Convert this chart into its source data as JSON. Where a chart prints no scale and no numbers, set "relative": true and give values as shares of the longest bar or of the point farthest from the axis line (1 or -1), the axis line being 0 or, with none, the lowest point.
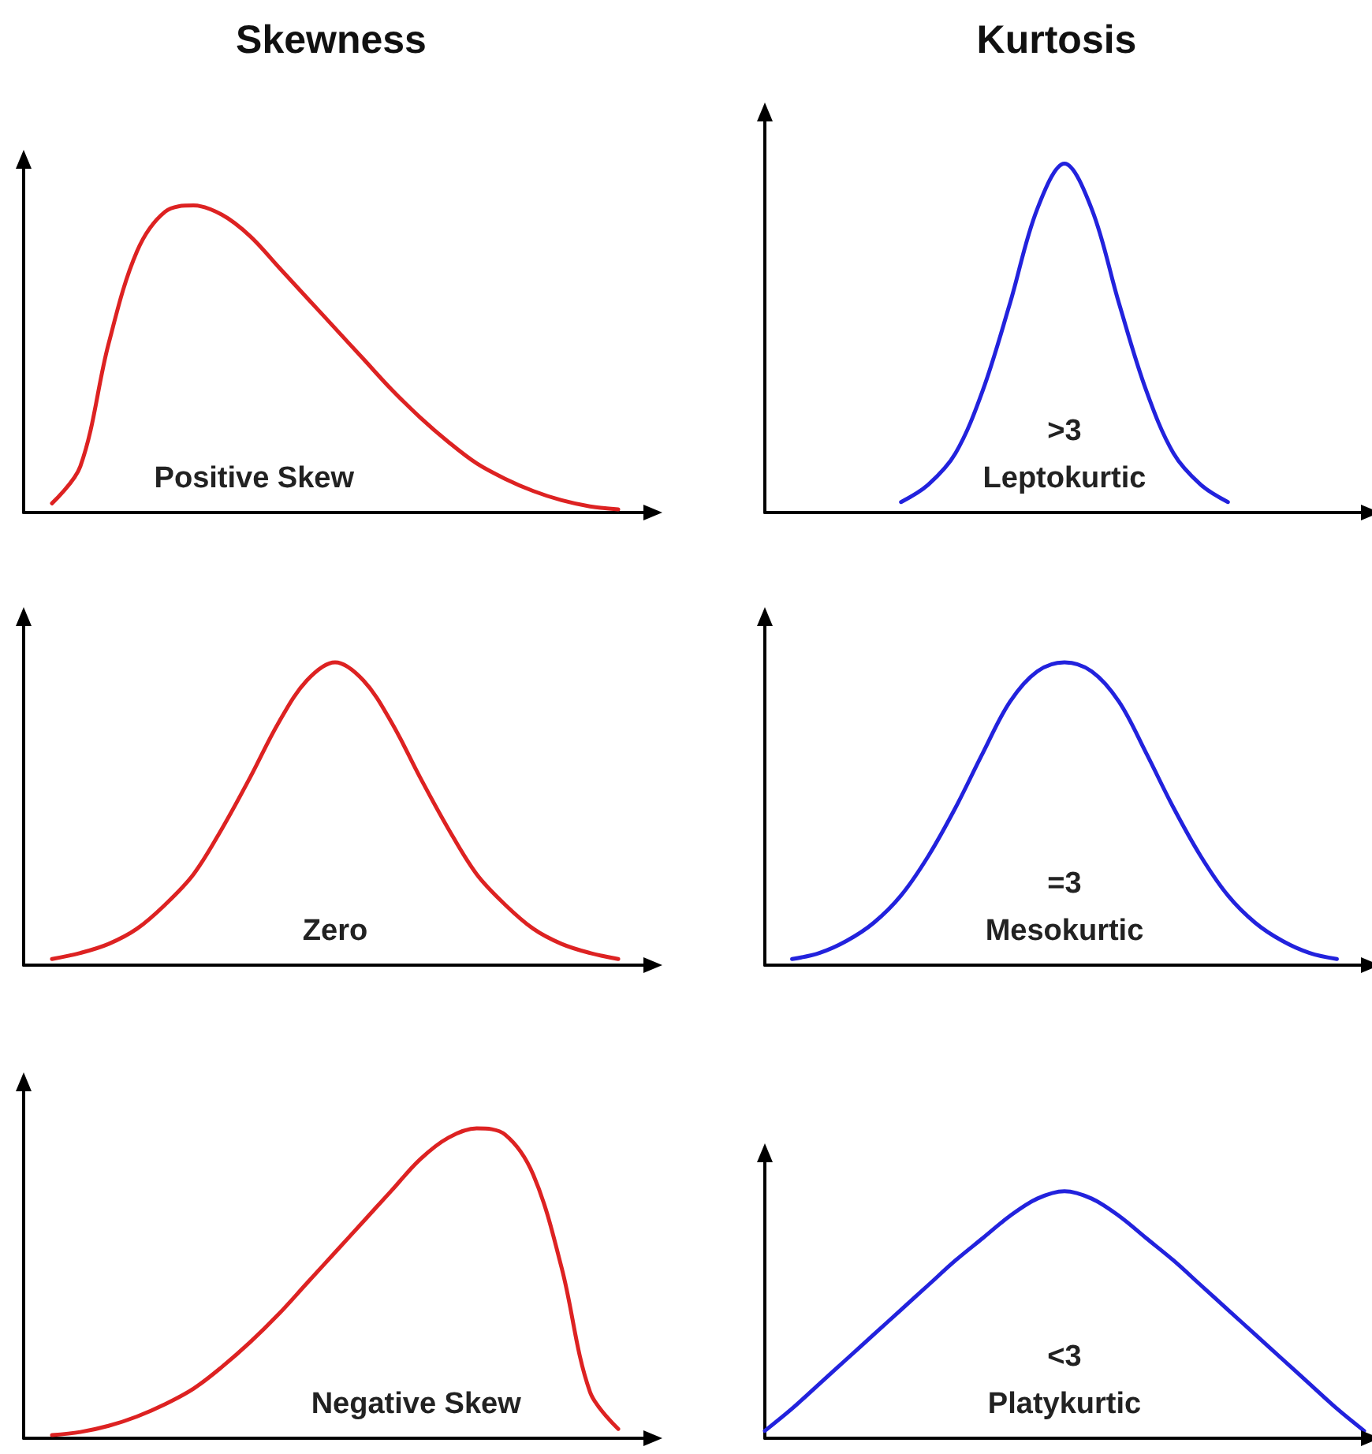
{
  "chart_data": [
    {
      "type": "line",
      "title": "Skewness",
      "relative": true,
      "categories": [
        null,
        null,
        null,
        null,
        null,
        null,
        null,
        null,
        null,
        null,
        null,
        null,
        null,
        null,
        null,
        null,
        null,
        null,
        null,
        null,
        null,
        null,
        null
      ],
      "annotations": [
        "Positive Skew"
      ],
      "grid": false,
      "marker": "none",
      "line_style": "solid",
      "series": [
        {
          "color": "#dd2222",
          "values": [
            null,
            0.03,
            0.15,
            0.55,
            0.85,
            0.98,
            1.0,
            0.97,
            0.9,
            0.8,
            0.7,
            0.6,
            0.5,
            0.4,
            0.31,
            0.23,
            0.16,
            0.11,
            0.07,
            0.04,
            0.02,
            0.01,
            null
          ]
        }
      ]
    },
    {
      "type": "line",
      "title": "Kurtosis",
      "relative": true,
      "categories": [
        null,
        null,
        null,
        null,
        null,
        null,
        null,
        null,
        null,
        null,
        null,
        null,
        null,
        null,
        null,
        null,
        null,
        null,
        null,
        null,
        null,
        null,
        null
      ],
      "annotations": [
        ">3",
        "Leptokurtic"
      ],
      "grid": false,
      "marker": "none",
      "line_style": "solid",
      "series": [
        {
          "color": "#2222dd",
          "values": [
            null,
            null,
            null,
            null,
            null,
            0.03,
            0.08,
            0.17,
            0.35,
            0.6,
            0.87,
            1.0,
            0.87,
            0.6,
            0.35,
            0.17,
            0.08,
            0.03,
            null,
            null,
            null,
            null,
            null
          ]
        }
      ]
    },
    {
      "type": "line",
      "relative": true,
      "categories": [
        null,
        null,
        null,
        null,
        null,
        null,
        null,
        null,
        null,
        null,
        null,
        null,
        null,
        null,
        null,
        null,
        null,
        null,
        null,
        null,
        null,
        null,
        null
      ],
      "annotations": [
        "Zero"
      ],
      "grid": false,
      "marker": "none",
      "line_style": "solid",
      "series": [
        {
          "color": "#dd2222",
          "values": [
            null,
            0.02,
            0.04,
            0.07,
            0.12,
            0.2,
            0.3,
            0.45,
            0.62,
            0.8,
            0.94,
            1.0,
            0.94,
            0.8,
            0.62,
            0.45,
            0.3,
            0.2,
            0.12,
            0.07,
            0.04,
            0.02,
            null
          ]
        }
      ]
    },
    {
      "type": "line",
      "relative": true,
      "categories": [
        null,
        null,
        null,
        null,
        null,
        null,
        null,
        null,
        null,
        null,
        null,
        null,
        null,
        null,
        null,
        null,
        null,
        null,
        null,
        null,
        null,
        null,
        null
      ],
      "annotations": [
        "=3",
        "Mesokurtic"
      ],
      "grid": false,
      "marker": "none",
      "line_style": "solid",
      "series": [
        {
          "color": "#2222dd",
          "values": [
            null,
            0.02,
            0.04,
            0.08,
            0.14,
            0.23,
            0.36,
            0.52,
            0.7,
            0.87,
            0.97,
            1.0,
            0.97,
            0.87,
            0.7,
            0.52,
            0.36,
            0.23,
            0.14,
            0.08,
            0.04,
            0.02,
            null
          ]
        }
      ]
    },
    {
      "type": "line",
      "relative": true,
      "categories": [
        null,
        null,
        null,
        null,
        null,
        null,
        null,
        null,
        null,
        null,
        null,
        null,
        null,
        null,
        null,
        null,
        null,
        null,
        null,
        null,
        null,
        null,
        null
      ],
      "annotations": [
        "Negative Skew"
      ],
      "grid": false,
      "marker": "none",
      "line_style": "solid",
      "series": [
        {
          "color": "#dd2222",
          "values": [
            null,
            0.01,
            0.02,
            0.04,
            0.07,
            0.11,
            0.16,
            0.23,
            0.31,
            0.4,
            0.5,
            0.6,
            0.7,
            0.8,
            0.9,
            0.97,
            1.0,
            0.98,
            0.85,
            0.55,
            0.15,
            0.03,
            null
          ]
        }
      ]
    },
    {
      "type": "line",
      "relative": true,
      "categories": [
        null,
        null,
        null,
        null,
        null,
        null,
        null,
        null,
        null,
        null,
        null,
        null,
        null,
        null,
        null,
        null,
        null,
        null,
        null,
        null,
        null,
        null,
        null
      ],
      "annotations": [
        "<3",
        "Platykurtic"
      ],
      "grid": false,
      "marker": "none",
      "line_style": "solid",
      "series": [
        {
          "color": "#2222dd",
          "values": [
            0.03,
            0.12,
            0.22,
            0.32,
            0.42,
            0.52,
            0.62,
            0.72,
            0.81,
            0.9,
            0.97,
            1.0,
            0.97,
            0.9,
            0.81,
            0.72,
            0.62,
            0.52,
            0.42,
            0.32,
            0.22,
            0.12,
            0.03
          ]
        }
      ]
    }
  ]
}
